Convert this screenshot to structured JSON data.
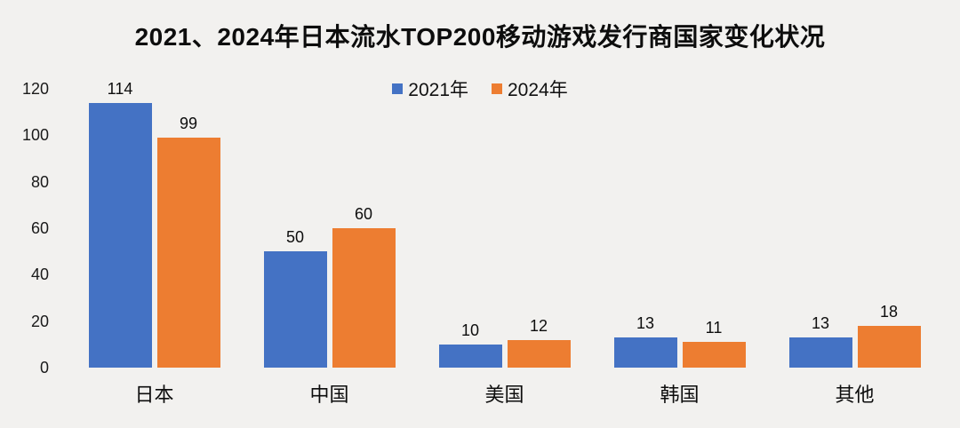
{
  "background": "#F2F1EF",
  "title": "2021、2024年日本流水TOP200移动游戏发行商国家变化状况",
  "legend": {
    "items": [
      {
        "label": "2021年",
        "color": "#4472C4"
      },
      {
        "label": "2024年",
        "color": "#ED7D31"
      }
    ]
  },
  "chart_data": {
    "type": "bar",
    "title": "2021、2024年日本流水TOP200移动游戏发行商国家变化状况",
    "categories": [
      "日本",
      "中国",
      "美国",
      "韩国",
      "其他"
    ],
    "series": [
      {
        "name": "2021年",
        "color": "#4472C4",
        "values": [
          114,
          50,
          10,
          13,
          13
        ]
      },
      {
        "name": "2024年",
        "color": "#ED7D31",
        "values": [
          99,
          60,
          12,
          11,
          18
        ]
      }
    ],
    "xlabel": "",
    "ylabel": "",
    "y_ticks": [
      0,
      20,
      40,
      60,
      80,
      100,
      120
    ],
    "ylim": [
      0,
      120
    ],
    "grid": false,
    "legend_position": "top-center",
    "value_labels": true,
    "background": "#F2F1EF"
  }
}
